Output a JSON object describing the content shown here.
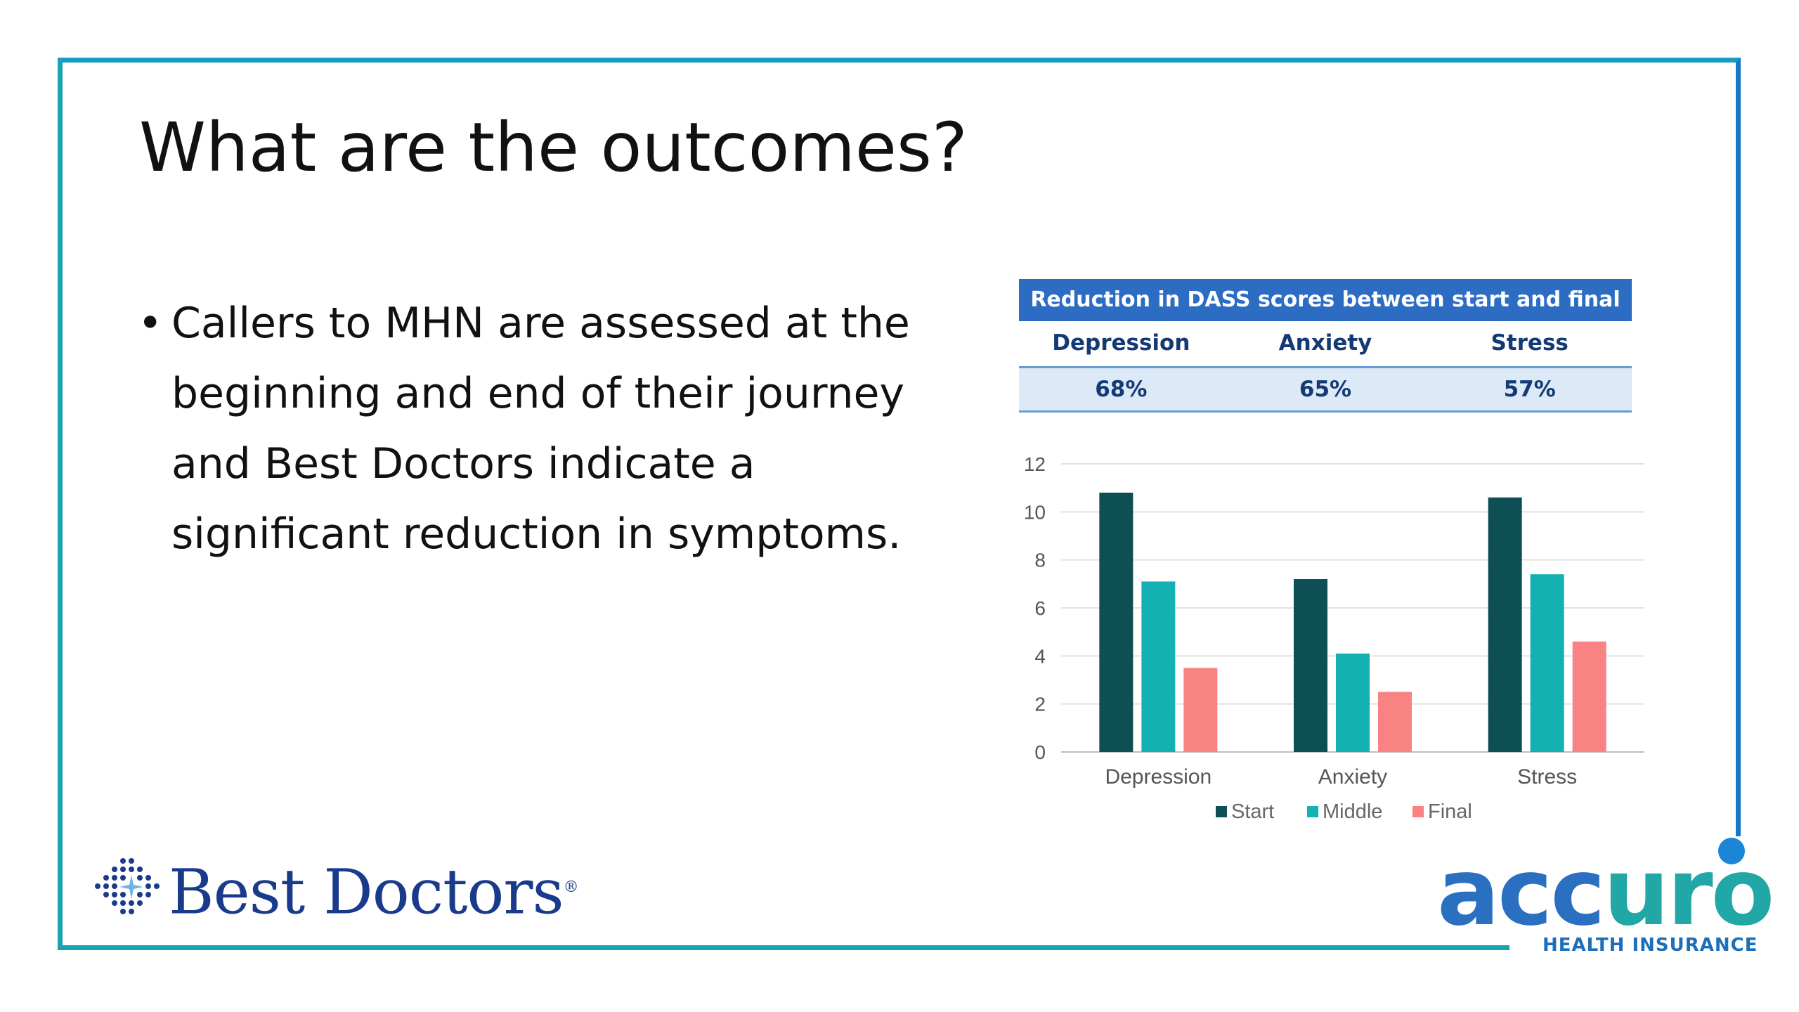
{
  "slide": {
    "title": "What are the outcomes?",
    "bullet_marker": "•",
    "bullet": "Callers to MHN are assessed at the beginning and end of their journey and Best Doctors indicate a significant reduction in symptoms."
  },
  "dass_table": {
    "title": "Reduction in DASS scores between start and final",
    "columns": [
      "Depression",
      "Anxiety",
      "Stress"
    ],
    "values": [
      "68%",
      "65%",
      "57%"
    ]
  },
  "chart_data": {
    "type": "bar",
    "categories": [
      "Depression",
      "Anxiety",
      "Stress"
    ],
    "series": [
      {
        "name": "Start",
        "values": [
          10.8,
          7.2,
          10.6
        ],
        "color": "#0d4f54"
      },
      {
        "name": "Middle",
        "values": [
          7.1,
          4.1,
          7.4
        ],
        "color": "#14b1b2"
      },
      {
        "name": "Final",
        "values": [
          3.5,
          2.5,
          4.6
        ],
        "color": "#f98383"
      }
    ],
    "ylim": [
      0,
      12
    ],
    "yticks": [
      "0",
      "2",
      "4",
      "6",
      "8",
      "10",
      "12"
    ],
    "grid": true,
    "legend": "bottom"
  },
  "logos": {
    "best_doctors": "Best Doctors",
    "best_doctors_reg": "®",
    "accuro_left": "acc",
    "accuro_right": "uro",
    "accuro_sub": "HEALTH INSURANCE"
  },
  "colors": {
    "frame": "#17a3b0",
    "accent_blue": "#2c6cc2",
    "dot": "#1b86d6"
  }
}
